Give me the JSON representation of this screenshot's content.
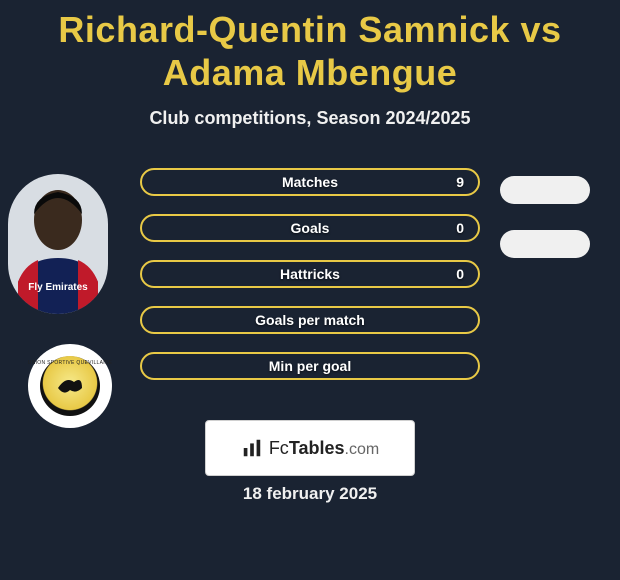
{
  "title": "Richard-Quentin Samnick vs Adama Mbengue",
  "subtitle": "Club competitions, Season 2024/2025",
  "date": "18 february 2025",
  "colors": {
    "background": "#1a2332",
    "accent": "#e8c946",
    "text": "#f0f0f0",
    "pill": "#f0f0f0"
  },
  "stats": [
    {
      "label": "Matches",
      "value": "9"
    },
    {
      "label": "Goals",
      "value": "0"
    },
    {
      "label": "Hattricks",
      "value": "0"
    },
    {
      "label": "Goals per match",
      "value": ""
    },
    {
      "label": "Min per goal",
      "value": ""
    }
  ],
  "extra_pills_count": 2,
  "player_photo": {
    "skin": "#3a2a1e",
    "jersey_body": "#122155",
    "jersey_sleeve": "#c01a2a",
    "sponsor_text": "Fly Emirates",
    "sponsor_color": "#ffffff"
  },
  "club_badge": {
    "ring_text": "UNION SPORTIVE QUEVILLAISE",
    "inner_bg": "#e8c946",
    "outer_ring": "#111111"
  },
  "watermark": {
    "fc": "Fc",
    "tables": "Tables",
    "com": ".com"
  }
}
